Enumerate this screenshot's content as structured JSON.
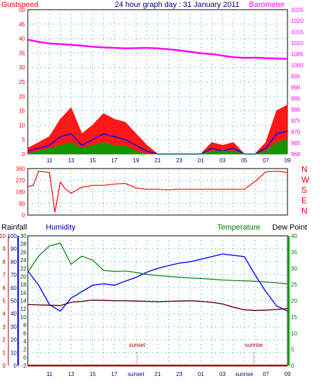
{
  "header": {
    "left": "Gustspeed",
    "center": "24 hour graph day : 31 January 2011",
    "right": "Barometer"
  },
  "panel2": {
    "direction_letters": [
      "N",
      "W",
      "S",
      "E",
      "N"
    ]
  },
  "panel3": {
    "labels": {
      "rainfall": "Rainfall",
      "humidity": "Humidity",
      "temperature": "Temperature",
      "dewpoint": "Dew Point"
    },
    "markers": {
      "sunset": "sunset",
      "sunrise": "sunrise"
    }
  },
  "colors": {
    "gust": "#ff0000",
    "wind": "#0000ff",
    "avg": "#00a000",
    "barometer": "#ff00ff",
    "direction": "#ff0000",
    "humidity": "#0000ff",
    "temperature": "#007800",
    "dewpoint": "#600000",
    "rain": "#a00000",
    "grid": "#00a0a0",
    "axis_dark": "#000080"
  },
  "chart_data": [
    {
      "type": "area",
      "title": "24 hour graph day : 31 January 2011",
      "x_tick_labels": [
        "11",
        "13",
        "15",
        "17",
        "19",
        "21",
        "23",
        "01",
        "03",
        "05",
        "07",
        "09"
      ],
      "left_axis": {
        "label": "Gustspeed",
        "ylim": [
          0,
          50
        ],
        "ticks": [
          0,
          5,
          10,
          15,
          20,
          25,
          30,
          35,
          40,
          45,
          50
        ]
      },
      "right_axis": {
        "label": "Barometer",
        "ylim": [
          960,
          1025
        ],
        "ticks": [
          960,
          965,
          970,
          975,
          980,
          985,
          990,
          995,
          1000,
          1005,
          1010,
          1015,
          1020,
          1025
        ]
      },
      "hours_from_0900": [
        0,
        1,
        2,
        3,
        4,
        5,
        6,
        7,
        8,
        9,
        10,
        11,
        12,
        13,
        14,
        15,
        16,
        17,
        18,
        19,
        20,
        21,
        22,
        23,
        24
      ],
      "series": [
        {
          "name": "Gustspeed",
          "axis": "left",
          "values": [
            2,
            4,
            6,
            12,
            16,
            7,
            10,
            14,
            12,
            11,
            7,
            3,
            0,
            0,
            0,
            0,
            0,
            4,
            3,
            4,
            0,
            0,
            4,
            15,
            17
          ]
        },
        {
          "name": "Barometer",
          "axis": "right",
          "values": [
            1011.5,
            1010.5,
            1009.8,
            1009.5,
            1009.2,
            1008.8,
            1008.3,
            1008,
            1007.8,
            1007.6,
            1007.7,
            1007.8,
            1007.6,
            1007.2,
            1006.7,
            1006,
            1005.4,
            1005,
            1004.3,
            1003.6,
            1003.3,
            1003.4,
            1003.2,
            1003.0,
            1002.9
          ]
        },
        {
          "name": "Windspeed",
          "values": [
            1,
            2,
            3,
            6,
            7,
            3,
            5,
            7,
            6,
            5,
            3,
            1,
            0,
            0,
            0,
            0,
            0,
            2,
            1,
            2,
            0,
            0,
            2,
            7,
            8
          ]
        },
        {
          "name": "Average",
          "values": [
            0,
            1,
            2,
            3,
            4,
            2,
            3,
            4,
            3,
            3,
            1,
            0,
            0,
            0,
            0,
            0,
            0,
            1,
            1,
            1,
            0,
            0,
            1,
            4,
            5
          ]
        }
      ]
    },
    {
      "type": "line",
      "left_axis": {
        "ylim": [
          0,
          360
        ],
        "ticks": [
          0,
          90,
          180,
          270,
          360
        ]
      },
      "right_axis_labels": [
        "N",
        "W",
        "S",
        "E",
        "N"
      ],
      "hours_from_0900": [
        0,
        0.5,
        1,
        1.5,
        2,
        2.5,
        3,
        3.5,
        4,
        5,
        6,
        7,
        8,
        9,
        10,
        11,
        11.5,
        12,
        13,
        14,
        15,
        16,
        17,
        18,
        19,
        19.5,
        20,
        21,
        22,
        23,
        24
      ],
      "series": [
        {
          "name": "Wind direction",
          "values": [
            220,
            230,
            340,
            335,
            330,
            20,
            255,
            200,
            170,
            215,
            230,
            230,
            240,
            245,
            210,
            200,
            200,
            200,
            195,
            200,
            200,
            200,
            200,
            200,
            200,
            200,
            200,
            260,
            335,
            340,
            330
          ]
        }
      ]
    },
    {
      "type": "line",
      "left_axis": {
        "label": "Rainfall",
        "ylim": [
          0,
          10
        ],
        "ticks": [
          0,
          1,
          2,
          3,
          4,
          5,
          6,
          7,
          8,
          9,
          10
        ]
      },
      "humidity_axis": {
        "label": "Humidity",
        "ylim": [
          0,
          100
        ],
        "ticks": [
          0,
          10,
          20,
          30,
          40,
          50,
          60,
          70,
          80,
          90,
          100
        ]
      },
      "temperature_axis": {
        "ylim": [
          -2,
          30
        ],
        "ticks": [
          -2,
          0,
          2,
          4,
          6,
          8,
          10,
          12,
          14,
          16,
          18,
          20,
          22,
          24,
          26,
          28,
          30
        ]
      },
      "right_axis": {
        "ylim": [
          0,
          40
        ],
        "ticks": [
          0,
          5,
          10,
          15,
          20,
          25,
          30,
          35,
          40
        ]
      },
      "hours_from_0900": [
        0,
        1,
        2,
        3,
        4,
        5,
        6,
        7,
        8,
        9,
        10,
        11,
        12,
        13,
        14,
        15,
        16,
        17,
        18,
        19,
        20,
        21,
        22,
        23,
        24
      ],
      "series": [
        {
          "name": "Humidity",
          "axis": "humidity",
          "values": [
            73,
            62,
            47,
            42,
            52,
            57,
            62,
            63,
            62,
            65,
            68,
            72,
            75,
            77,
            79,
            80,
            82,
            84,
            86,
            85,
            84,
            70,
            57,
            46,
            42
          ]
        },
        {
          "name": "Temperature",
          "axis": "temperature",
          "values": [
            21,
            25,
            27.5,
            28.2,
            23,
            25,
            24,
            21.5,
            21.2,
            21.3,
            21,
            20.5,
            20.2,
            20,
            19.8,
            19.6,
            19.5,
            19.3,
            19.1,
            19.0,
            18.9,
            18.8,
            18.6,
            18.4,
            18.2
          ]
        },
        {
          "name": "Dew Point",
          "axis": "right",
          "values": [
            18.8,
            18.7,
            18.6,
            18.5,
            19.5,
            19.8,
            20.2,
            20.1,
            20.0,
            20.0,
            19.9,
            19.8,
            19.7,
            19.8,
            19.9,
            20.0,
            19.8,
            19.5,
            19.0,
            18.0,
            17.2,
            17.0,
            17.1,
            17.3,
            17.6
          ]
        },
        {
          "name": "Rainfall",
          "axis": "left",
          "values": [
            0,
            0,
            0,
            0,
            0,
            0,
            0,
            0,
            0,
            0,
            0,
            0,
            0,
            0,
            0,
            0,
            0,
            0,
            0,
            0,
            0,
            0,
            0,
            0,
            0
          ]
        }
      ],
      "annotations": [
        {
          "text": "sunset",
          "hour": 10.1
        },
        {
          "text": "sunrise",
          "hour": 20.9
        }
      ]
    }
  ]
}
